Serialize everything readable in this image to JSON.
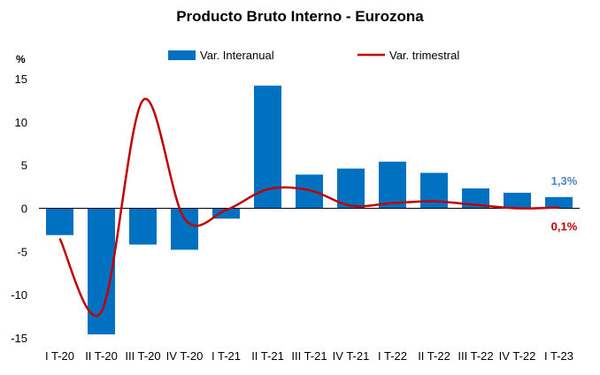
{
  "chart_data": {
    "type": "bar",
    "title": "Producto Bruto Interno - Eurozona",
    "ylabel": "%",
    "xlabel": "",
    "ylim": [
      -15,
      15
    ],
    "yticks": [
      15,
      10,
      5,
      0,
      -5,
      -10,
      -15
    ],
    "categories": [
      "I T-20",
      "II T-20",
      "III T-20",
      "IV T-20",
      "I T-21",
      "II T-21",
      "III T-21",
      "IV T-21",
      "I T-22",
      "II T-22",
      "III T-22",
      "IV T-22",
      "I T-23"
    ],
    "series": [
      {
        "name": "Var. Interanual",
        "type": "bar",
        "color": "#0070C0",
        "values": [
          -3.1,
          -14.6,
          -4.2,
          -4.8,
          -1.2,
          14.2,
          3.9,
          4.6,
          5.4,
          4.1,
          2.3,
          1.8,
          1.3
        ]
      },
      {
        "name": "Var. trimestral",
        "type": "line",
        "color": "#C00000",
        "values": [
          -3.5,
          -12.0,
          12.5,
          -1.2,
          -0.2,
          2.2,
          2.1,
          0.3,
          0.6,
          0.8,
          0.4,
          0.0,
          0.1
        ]
      }
    ],
    "legend_position": "top",
    "grid": false,
    "annotations": [
      {
        "text": "1,3%",
        "series": 0,
        "index": 12,
        "color": "#4A86C8"
      },
      {
        "text": "0,1%",
        "series": 1,
        "index": 12,
        "color": "#C00000"
      }
    ]
  }
}
